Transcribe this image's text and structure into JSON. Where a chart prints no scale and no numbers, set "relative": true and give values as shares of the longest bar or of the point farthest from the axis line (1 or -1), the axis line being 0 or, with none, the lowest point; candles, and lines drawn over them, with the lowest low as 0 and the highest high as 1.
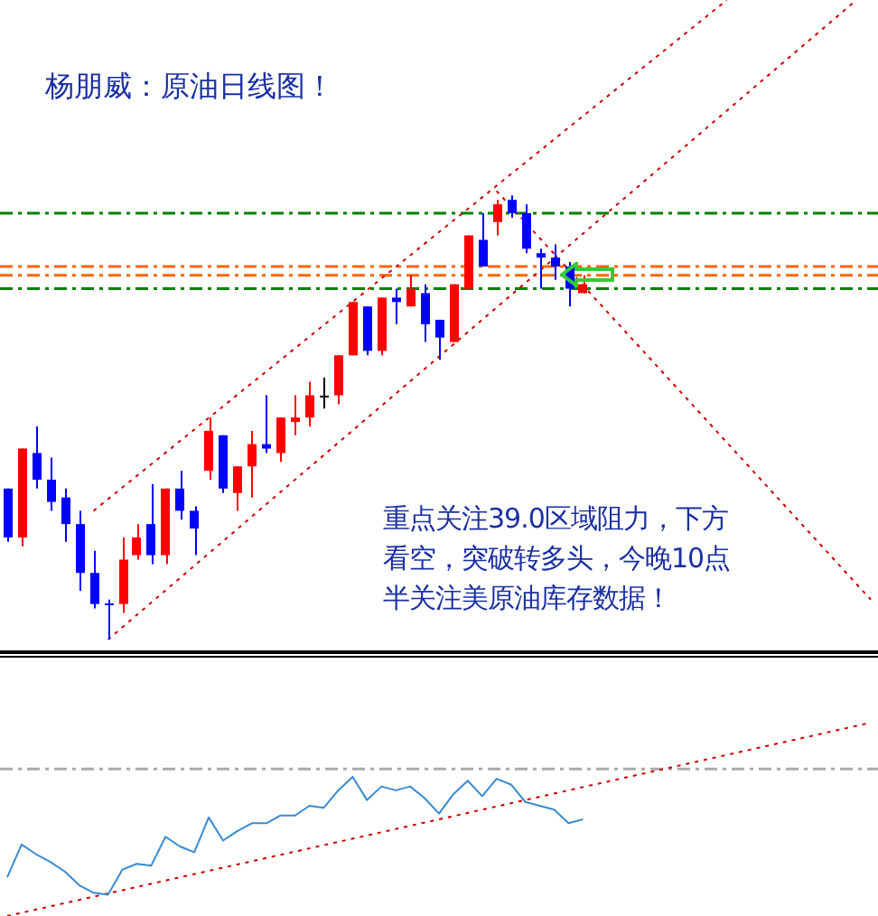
{
  "chart_data": [
    {
      "type": "candlestick",
      "title": "杨朋威：原油日线图！",
      "relative": true,
      "tick_labels": false,
      "grid": false,
      "legend": false,
      "categories": [
        null,
        null,
        null,
        null,
        null,
        null,
        null,
        null,
        null,
        null,
        null,
        null,
        null,
        null,
        null,
        null,
        null,
        null,
        null,
        null,
        null,
        null,
        null,
        null,
        null,
        null,
        null,
        null,
        null,
        null,
        null,
        null,
        null,
        null,
        null,
        null,
        null,
        null,
        null,
        null,
        null,
        null,
        null,
        null,
        null,
        null,
        null,
        null,
        null,
        null,
        null,
        null,
        null,
        null,
        null,
        null,
        null,
        null,
        null,
        null,
        null
      ],
      "ohlc": [
        [
          0.34,
          0.34,
          0.22,
          0.23
        ],
        [
          0.23,
          0.43,
          0.21,
          0.43
        ],
        [
          0.42,
          0.48,
          0.34,
          0.36
        ],
        [
          0.36,
          0.41,
          0.29,
          0.31
        ],
        [
          0.32,
          0.34,
          0.22,
          0.26
        ],
        [
          0.26,
          0.29,
          0.11,
          0.15
        ],
        [
          0.15,
          0.2,
          0.07,
          0.08
        ],
        [
          0.08,
          0.09,
          0,
          0.08
        ],
        [
          0.08,
          0.23,
          0.06,
          0.18
        ],
        [
          0.19,
          0.26,
          0.18,
          0.23
        ],
        [
          0.26,
          0.35,
          0.17,
          0.19
        ],
        [
          0.19,
          0.34,
          0.17,
          0.34
        ],
        [
          0.34,
          0.38,
          0.27,
          0.29
        ],
        [
          0.29,
          0.3,
          0.19,
          0.25
        ],
        [
          0.38,
          0.5,
          0.36,
          0.47
        ],
        [
          0.46,
          0.46,
          0.33,
          0.34
        ],
        [
          0.33,
          0.39,
          0.29,
          0.39
        ],
        [
          0.39,
          0.47,
          0.32,
          0.44
        ],
        [
          0.44,
          0.55,
          0.42,
          0.43
        ],
        [
          0.42,
          0.5,
          0.4,
          0.5
        ],
        [
          0.49,
          0.55,
          0.46,
          0.5
        ],
        [
          0.5,
          0.58,
          0.48,
          0.55
        ],
        [
          0.55,
          0.59,
          0.52,
          0.55
        ],
        [
          0.55,
          0.64,
          0.53,
          0.64
        ],
        [
          0.64,
          0.76,
          0.64,
          0.76
        ],
        [
          0.75,
          0.75,
          0.64,
          0.65
        ],
        [
          0.65,
          0.77,
          0.64,
          0.77
        ],
        [
          0.77,
          0.79,
          0.71,
          0.76
        ],
        [
          0.75,
          0.82,
          0.75,
          0.79
        ],
        [
          0.78,
          0.8,
          0.67,
          0.71
        ],
        [
          0.72,
          0.72,
          0.63,
          0.68
        ],
        [
          0.67,
          0.8,
          0.67,
          0.8
        ],
        [
          0.79,
          0.91,
          0.79,
          0.91
        ],
        [
          0.9,
          0.96,
          0.84,
          0.84
        ],
        [
          0.94,
          0.99,
          0.91,
          0.98
        ],
        [
          0.99,
          1.0,
          0.95,
          0.96
        ],
        [
          0.96,
          0.98,
          0.87,
          0.88
        ],
        [
          0.87,
          0.88,
          0.79,
          0.86
        ],
        [
          0.86,
          0.89,
          0.81,
          0.84
        ],
        [
          0.84,
          0.85,
          0.75,
          0.79
        ],
        [
          0.78,
          0.82,
          0.78,
          0.8
        ],
        null,
        null,
        null,
        null,
        null,
        null,
        null,
        null,
        null,
        null,
        null,
        null,
        null,
        null,
        null,
        null,
        null,
        null,
        null,
        null
      ],
      "colors": [
        "#0000ff",
        "#ff0000",
        "#0000ff",
        "#0000ff",
        "#0000ff",
        "#0000ff",
        "#0000ff",
        "#0000ff",
        "#ff0000",
        "#ff0000",
        "#0000ff",
        "#ff0000",
        "#0000ff",
        "#0000ff",
        "#ff0000",
        "#0000ff",
        "#ff0000",
        "#ff0000",
        "#0000ff",
        "#ff0000",
        "#ff0000",
        "#ff0000",
        "#000000",
        "#ff0000",
        "#ff0000",
        "#0000ff",
        "#ff0000",
        "#0000ff",
        "#ff0000",
        "#0000ff",
        "#0000ff",
        "#ff0000",
        "#ff0000",
        "#0000ff",
        "#ff0000",
        "#0000ff",
        "#0000ff",
        "#0000ff",
        "#0000ff",
        "#0000ff",
        "#ff0000",
        null,
        null,
        null,
        null,
        null,
        null,
        null,
        null,
        null,
        null,
        null,
        null,
        null,
        null,
        null,
        null,
        null,
        null,
        null,
        null
      ],
      "series": [
        {
          "type": "line",
          "color": "#cc0000",
          "line_style": "dotted",
          "values": [
            null,
            null,
            null,
            null,
            null,
            null,
            0.29,
            null,
            null,
            null,
            null,
            null,
            null,
            null,
            null,
            null,
            null,
            null,
            null,
            null,
            null,
            null,
            null,
            null,
            null,
            null,
            null,
            null,
            null,
            null,
            null,
            null,
            null,
            null,
            null,
            null,
            null,
            null,
            null,
            null,
            null,
            null,
            null,
            null,
            null,
            null,
            null,
            null,
            null,
            null,
            1.44,
            null,
            null,
            null,
            null,
            null,
            null,
            null,
            null,
            null,
            null
          ]
        },
        {
          "type": "line",
          "color": "#cc0000",
          "line_style": "dotted",
          "values": [
            null,
            null,
            null,
            null,
            null,
            null,
            null,
            0,
            null,
            null,
            null,
            null,
            null,
            null,
            null,
            null,
            null,
            null,
            null,
            null,
            null,
            null,
            null,
            null,
            null,
            null,
            null,
            null,
            null,
            null,
            null,
            null,
            null,
            null,
            null,
            null,
            null,
            null,
            null,
            null,
            null,
            null,
            null,
            null,
            null,
            null,
            null,
            null,
            null,
            null,
            null,
            null,
            null,
            null,
            null,
            null,
            null,
            null,
            null,
            1.44,
            null
          ]
        },
        {
          "type": "line",
          "color": "#cc0000",
          "line_style": "dotted",
          "values": [
            null,
            null,
            null,
            null,
            null,
            null,
            null,
            null,
            null,
            null,
            null,
            null,
            null,
            null,
            null,
            null,
            null,
            null,
            null,
            null,
            null,
            null,
            null,
            null,
            null,
            null,
            null,
            null,
            null,
            null,
            null,
            null,
            null,
            null,
            1.01,
            null,
            null,
            null,
            null,
            null,
            null,
            null,
            null,
            null,
            null,
            null,
            null,
            null,
            null,
            null,
            null,
            null,
            null,
            null,
            null,
            null,
            null,
            null,
            null,
            null,
            0.09
          ]
        }
      ],
      "ref_lines": [
        {
          "axis": "y",
          "value": 0.96,
          "color": "#008000",
          "line_style": "dashed"
        },
        {
          "axis": "y",
          "value": 0.84,
          "color": "#ff6600",
          "line_style": "dashed"
        },
        {
          "axis": "y",
          "value": 0.82,
          "color": "#ff6600",
          "line_style": "dashed"
        },
        {
          "axis": "y",
          "value": 0.79,
          "color": "#008000",
          "line_style": "dashed"
        }
      ],
      "annotations": [
        "重点关注39.0区域阻力，下方看空，突破转多头，今晚10点半关注美原油库存数据！"
      ]
    },
    {
      "type": "line",
      "relative": true,
      "tick_labels": false,
      "grid": false,
      "legend": false,
      "categories": [
        null,
        null,
        null,
        null,
        null,
        null,
        null,
        null,
        null,
        null,
        null,
        null,
        null,
        null,
        null,
        null,
        null,
        null,
        null,
        null,
        null,
        null,
        null,
        null,
        null,
        null,
        null,
        null,
        null,
        null,
        null,
        null,
        null,
        null,
        null,
        null,
        null,
        null,
        null,
        null,
        null,
        null,
        null,
        null,
        null,
        null,
        null,
        null,
        null,
        null,
        null,
        null,
        null,
        null,
        null,
        null,
        null,
        null,
        null,
        null,
        null
      ],
      "series": [
        {
          "color": "#3a8ad0",
          "values": [
            0.2,
            0.37,
            0.32,
            0.28,
            0.23,
            0.16,
            0.12,
            0.11,
            0.24,
            0.27,
            0.26,
            0.41,
            0.36,
            0.33,
            0.51,
            0.39,
            0.44,
            0.48,
            0.48,
            0.52,
            0.52,
            0.57,
            0.56,
            0.65,
            0.72,
            0.6,
            0.67,
            0.65,
            0.67,
            0.61,
            0.53,
            0.63,
            0.7,
            0.62,
            0.71,
            0.68,
            0.59,
            0.57,
            0.55,
            0.48,
            0.5,
            null,
            null,
            null,
            null,
            null,
            null,
            null,
            null,
            null,
            null,
            null,
            null,
            null,
            null,
            null,
            null,
            null,
            null,
            null,
            null
          ]
        },
        {
          "color": "#cc0000",
          "line_style": "dotted",
          "values": [
            0,
            null,
            null,
            null,
            null,
            null,
            null,
            null,
            null,
            null,
            null,
            null,
            null,
            null,
            null,
            null,
            null,
            null,
            null,
            null,
            null,
            null,
            null,
            null,
            null,
            null,
            null,
            null,
            null,
            null,
            null,
            null,
            null,
            null,
            null,
            null,
            null,
            null,
            null,
            null,
            null,
            null,
            null,
            null,
            null,
            null,
            null,
            null,
            null,
            null,
            null,
            null,
            null,
            null,
            null,
            null,
            null,
            null,
            null,
            null,
            1.0
          ]
        }
      ],
      "ref_lines": [
        {
          "axis": "y",
          "value": 0.76,
          "color": "#aaaaaa",
          "line_style": "dashed"
        }
      ]
    }
  ]
}
